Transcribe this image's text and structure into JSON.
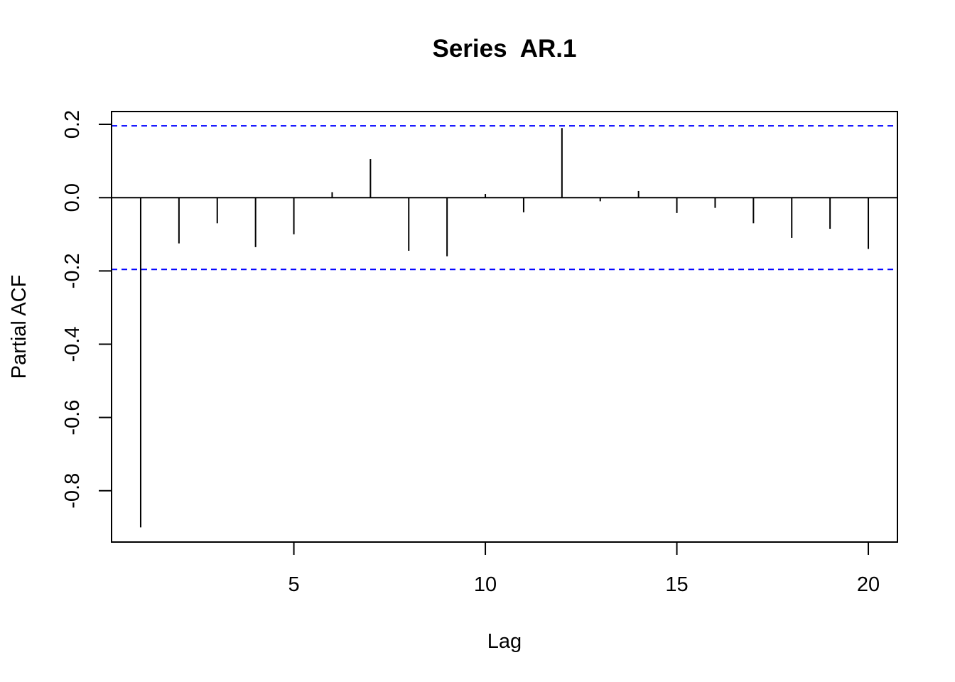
{
  "chart_data": {
    "type": "bar",
    "style": "vertical spikes (pacf plot)",
    "title": "Series  AR.1",
    "xlabel": "Lag",
    "ylabel": "Partial ACF",
    "x": [
      1,
      2,
      3,
      4,
      5,
      6,
      7,
      8,
      9,
      10,
      11,
      12,
      13,
      14,
      15,
      16,
      17,
      18,
      19,
      20
    ],
    "values": [
      -0.9,
      -0.125,
      -0.07,
      -0.135,
      -0.1,
      0.015,
      0.105,
      -0.145,
      -0.16,
      0.01,
      -0.04,
      0.19,
      -0.01,
      0.018,
      -0.042,
      -0.028,
      -0.07,
      -0.11,
      -0.085,
      -0.14
    ],
    "confidence_band": [
      0.196,
      -0.196
    ],
    "confidence_color": "#0000ff",
    "xlim": [
      0.24,
      20.76
    ],
    "ylim": [
      -0.94,
      0.235
    ],
    "xticks": [
      5,
      10,
      15,
      20
    ],
    "xtick_labels": [
      "5",
      "10",
      "15",
      "20"
    ],
    "yticks": [
      -0.8,
      -0.6,
      -0.4,
      -0.2,
      0.0,
      0.2
    ],
    "ytick_labels": [
      "-0.8",
      "-0.6",
      "-0.4",
      "-0.2",
      "0.0",
      "0.2"
    ],
    "grid": false,
    "legend": "none"
  }
}
